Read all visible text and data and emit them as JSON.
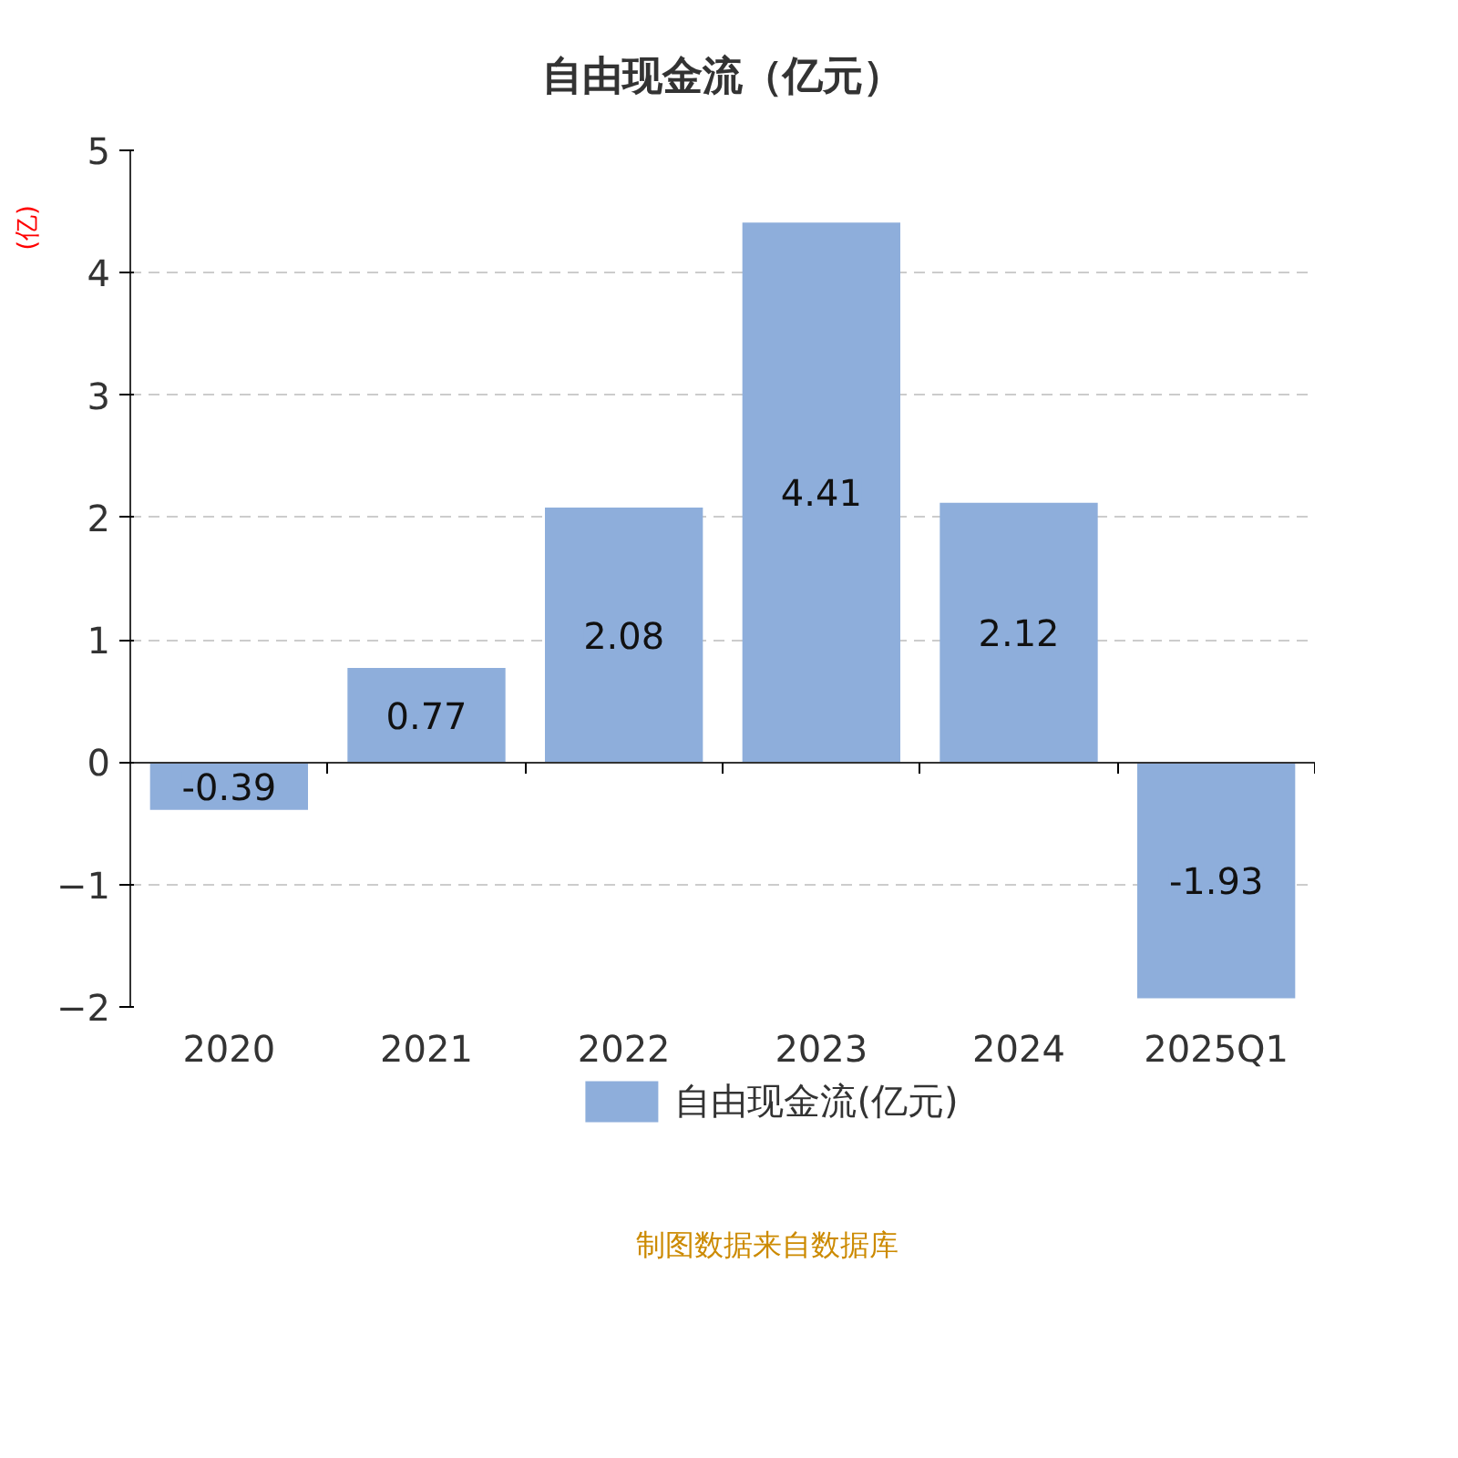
{
  "chart_data": {
    "type": "bar",
    "title": "自由现金流（亿元）",
    "ylabel": "(亿)",
    "categories": [
      "2020",
      "2021",
      "2022",
      "2023",
      "2024",
      "2025Q1"
    ],
    "series": [
      {
        "name": "自由现金流(亿元)",
        "color": "#8eaedb",
        "values": [
          -0.39,
          0.77,
          2.08,
          4.41,
          2.12,
          -1.93
        ]
      }
    ],
    "ylim": [
      -2,
      5
    ],
    "yticks": [
      -2,
      -1,
      0,
      1,
      2,
      3,
      4,
      5
    ],
    "grid": "y",
    "legend": "bottom",
    "data_labels": true,
    "annotations": [
      "制图数据来自数据库"
    ]
  }
}
